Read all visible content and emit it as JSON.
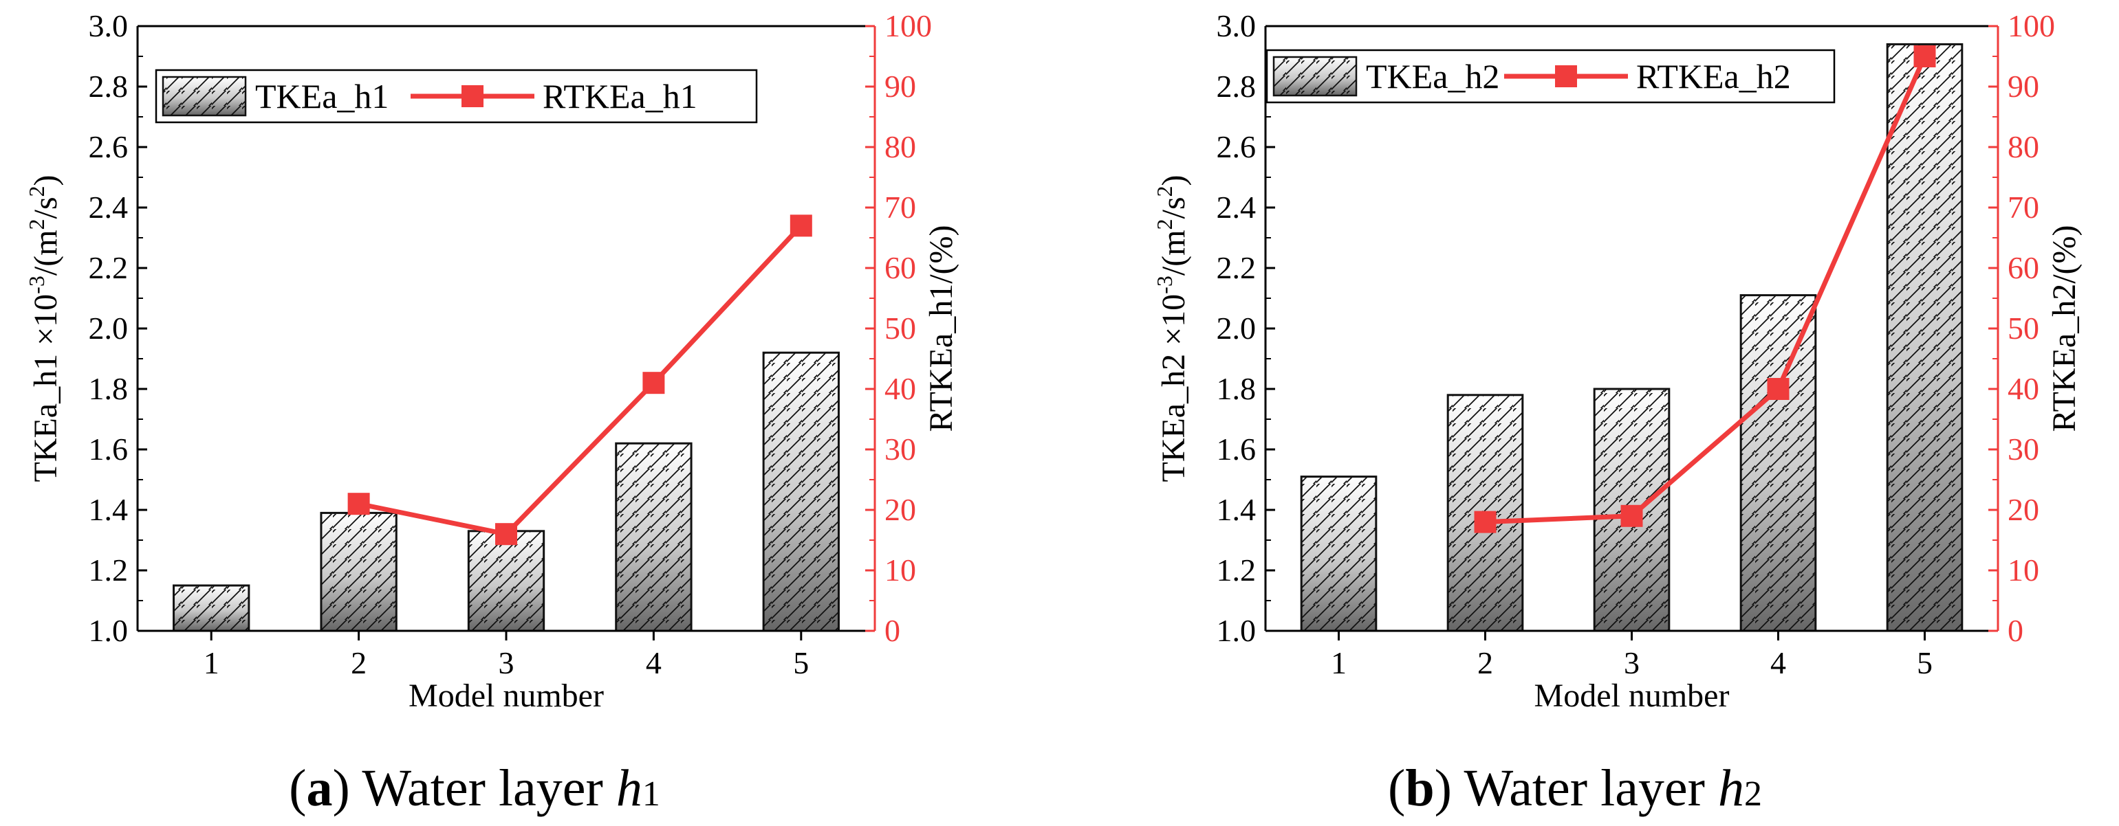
{
  "chart_data": [
    {
      "type": "bar+line",
      "caption": {
        "letter": "a",
        "text": " Water layer ",
        "var": "h",
        "sub": "1"
      },
      "categories": [
        "1",
        "2",
        "3",
        "4",
        "5"
      ],
      "xlabel": "Model number",
      "ylabel": {
        "main": "TKEa_h1 ×10",
        "exp": "-3",
        "mid": "/(m",
        "exp2": "2",
        "mid2": "/s",
        "exp3": "2",
        "end": ")"
      },
      "y2label": "RTKEa_h1/(%)",
      "ylim": [
        1.0,
        3.0
      ],
      "yticks": [
        "1.0",
        "1.2",
        "1.4",
        "1.6",
        "1.8",
        "2.0",
        "2.2",
        "2.4",
        "2.6",
        "2.8",
        "3.0"
      ],
      "y2lim": [
        0,
        100
      ],
      "y2ticks": [
        "0",
        "10",
        "20",
        "30",
        "40",
        "50",
        "60",
        "70",
        "80",
        "90",
        "100"
      ],
      "series": [
        {
          "name": "TKEa_h1",
          "kind": "bar",
          "axis": "left",
          "values": [
            1.15,
            1.39,
            1.33,
            1.62,
            1.92
          ]
        },
        {
          "name": "RTKEa_h1",
          "kind": "line",
          "axis": "right",
          "color": "#f03c3c",
          "values": [
            null,
            21,
            16,
            41,
            67
          ]
        }
      ]
    },
    {
      "type": "bar+line",
      "caption": {
        "letter": "b",
        "text": " Water layer ",
        "var": "h",
        "sub": "2"
      },
      "categories": [
        "1",
        "2",
        "3",
        "4",
        "5"
      ],
      "xlabel": "Model number",
      "ylabel": {
        "main": "TKEa_h2 ×10",
        "exp": "-3",
        "mid": "/(m",
        "exp2": "2",
        "mid2": "/s",
        "exp3": "2",
        "end": ")"
      },
      "y2label": "RTKEa_h2/(%)",
      "ylim": [
        1.0,
        3.0
      ],
      "yticks": [
        "1.0",
        "1.2",
        "1.4",
        "1.6",
        "1.8",
        "2.0",
        "2.2",
        "2.4",
        "2.6",
        "2.8",
        "3.0"
      ],
      "y2lim": [
        0,
        100
      ],
      "y2ticks": [
        "0",
        "10",
        "20",
        "30",
        "40",
        "50",
        "60",
        "70",
        "80",
        "90",
        "100"
      ],
      "series": [
        {
          "name": "TKEa_h2",
          "kind": "bar",
          "axis": "left",
          "values": [
            1.51,
            1.78,
            1.8,
            2.11,
            2.94
          ]
        },
        {
          "name": "RTKEa_h2",
          "kind": "line",
          "axis": "right",
          "color": "#f03c3c",
          "values": [
            null,
            18,
            19,
            40,
            95
          ]
        }
      ]
    }
  ]
}
